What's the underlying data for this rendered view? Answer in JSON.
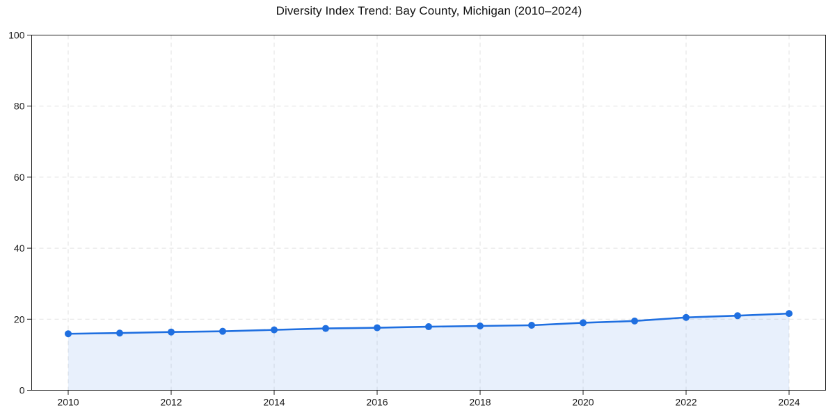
{
  "chart_data": {
    "type": "area",
    "title": "Diversity Index Trend: Bay County, Michigan (2010–2024)",
    "xlabel": "",
    "ylabel": "",
    "x": [
      2010,
      2011,
      2012,
      2013,
      2014,
      2015,
      2016,
      2017,
      2018,
      2019,
      2020,
      2021,
      2022,
      2023,
      2024
    ],
    "series": [
      {
        "name": "Diversity Index",
        "values": [
          15.9,
          16.1,
          16.4,
          16.6,
          17.0,
          17.4,
          17.6,
          17.9,
          18.1,
          18.3,
          19.0,
          19.5,
          20.5,
          21.0,
          21.6
        ]
      }
    ],
    "ylim": [
      0,
      100
    ],
    "yticks": [
      0,
      20,
      40,
      60,
      80,
      100
    ],
    "xticks": [
      2010,
      2012,
      2014,
      2016,
      2018,
      2020,
      2022,
      2024
    ],
    "grid": true,
    "grid_style": "dashed",
    "legend_position": "none",
    "colors": {
      "line": "#1f6fe0",
      "marker": "#1f6fe0",
      "area_fill": "rgba(31,111,224,0.10)",
      "gridline": "#e2e2e2",
      "axis": "#1a1a1a",
      "tick_label": "#1a1a1a",
      "background": "#ffffff"
    }
  }
}
